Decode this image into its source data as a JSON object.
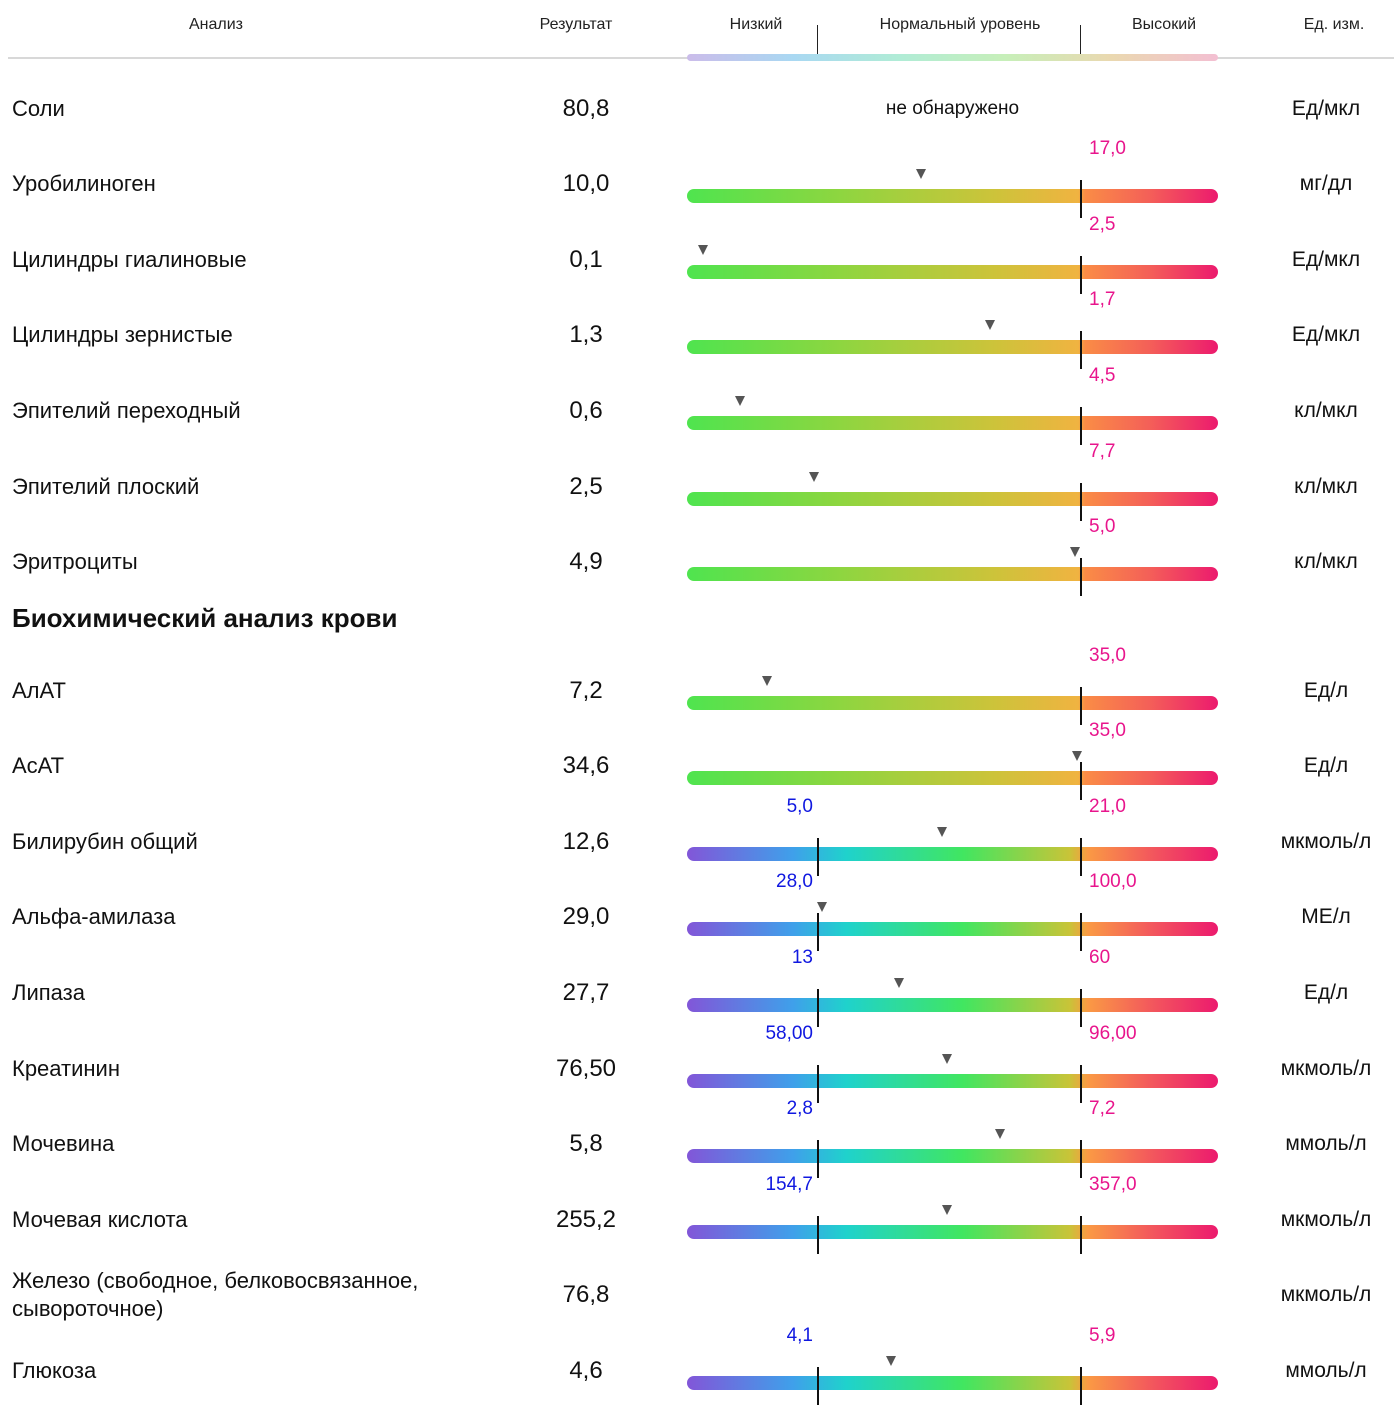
{
  "header": {
    "name": "Анализ",
    "result": "Результат",
    "low": "Низкий",
    "normal": "Нормальный уровень",
    "high": "Высокий",
    "unit": "Ед. изм."
  },
  "section_title": "Биохимический анализ крови",
  "colors": {
    "high_limit": "#e8158c",
    "low_limit": "#1018e0",
    "marker": "#555555"
  },
  "rows": [
    {
      "name": "Соли",
      "result": "80,8",
      "unit": "Ед/мкл",
      "note": "не обнаружено"
    },
    {
      "name": "Уробилиноген",
      "result": "10,0",
      "unit": "мг/дл",
      "high": "17,0",
      "level": 0.44
    },
    {
      "name": "Цилиндры гиалиновые",
      "result": "0,1",
      "unit": "Ед/мкл",
      "high": "2,5",
      "level": 0.03
    },
    {
      "name": "Цилиндры зернистые",
      "result": "1,3",
      "unit": "Ед/мкл",
      "high": "1,7",
      "level": 0.57
    },
    {
      "name": "Эпителий переходный",
      "result": "0,6",
      "unit": "кл/мкл",
      "high": "4,5",
      "level": 0.1
    },
    {
      "name": "Эпителий плоский",
      "result": "2,5",
      "unit": "кл/мкл",
      "high": "7,7",
      "level": 0.24
    },
    {
      "name": "Эритроциты",
      "result": "4,9",
      "unit": "кл/мкл",
      "high": "5,0",
      "level": 0.73
    },
    {
      "name": "АлАТ",
      "result": "7,2",
      "unit": "Ед/л",
      "high": "35,0",
      "level": 0.15
    },
    {
      "name": "АсАТ",
      "result": "34,6",
      "unit": "Ед/л",
      "high": "35,0",
      "level": 0.735
    },
    {
      "name": "Билирубин общий",
      "result": "12,6",
      "unit": "мкмоль/л",
      "low": "5,0",
      "high": "21,0",
      "level": 0.48
    },
    {
      "name": "Альфа-амилаза",
      "result": "29,0",
      "unit": "МЕ/л",
      "low": "28,0",
      "high": "100,0",
      "level": 0.255
    },
    {
      "name": "Липаза",
      "result": "27,7",
      "unit": "Ед/л",
      "low": "13",
      "high": "60",
      "level": 0.4
    },
    {
      "name": "Креатинин",
      "result": "76,50",
      "unit": "мкмоль/л",
      "low": "58,00",
      "high": "96,00",
      "level": 0.49
    },
    {
      "name": "Мочевина",
      "result": "5,8",
      "unit": "ммоль/л",
      "low": "2,8",
      "high": "7,2",
      "level": 0.59
    },
    {
      "name": "Мочевая кислота",
      "result": "255,2",
      "unit": "мкмоль/л",
      "low": "154,7",
      "high": "357,0",
      "level": 0.49
    },
    {
      "name": "Железо (свободное, белковосвязанное, сывороточное)",
      "result": "76,8",
      "unit": "мкмоль/л"
    },
    {
      "name": "Глюкоза",
      "result": "4,6",
      "unit": "ммоль/л",
      "low": "4,1",
      "high": "5,9",
      "level": 0.385
    }
  ]
}
